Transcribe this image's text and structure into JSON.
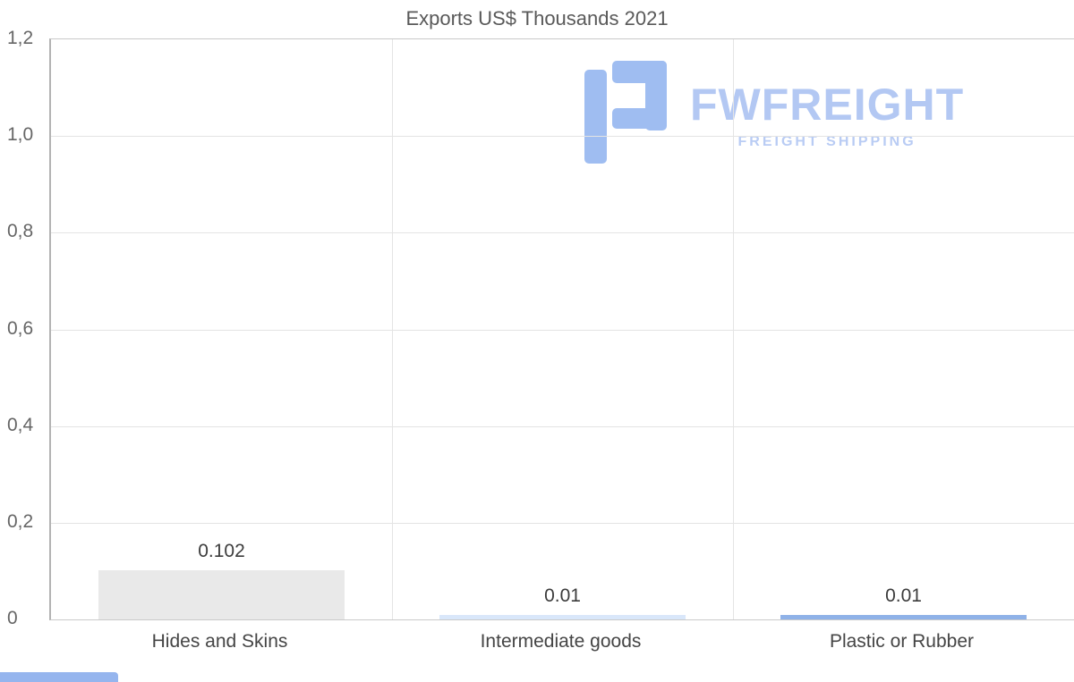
{
  "watermark": {
    "brand": "FWFREIGHT",
    "tagline": "FREIGHT SHIPPING"
  },
  "chart_data": {
    "type": "bar",
    "title": "Exports US$ Thousands 2021",
    "categories": [
      "Hides and Skins",
      "Intermediate goods",
      "Plastic or Rubber"
    ],
    "values": [
      0.102,
      0.01,
      0.01
    ],
    "value_labels": [
      "0.102",
      "0.01",
      "0.01"
    ],
    "bar_colors": [
      "#e9e9e9",
      "#d9e7fa",
      "#8fb2e8"
    ],
    "ylim": [
      0,
      1.2
    ],
    "yticks": [
      "0",
      "0,2",
      "0,4",
      "0,6",
      "0,8",
      "1,0",
      "1,2"
    ],
    "ytick_values": [
      0,
      0.2,
      0.4,
      0.6,
      0.8,
      1.0,
      1.2
    ],
    "grid": true,
    "legend_position": "none",
    "xlabel": "",
    "ylabel": ""
  }
}
